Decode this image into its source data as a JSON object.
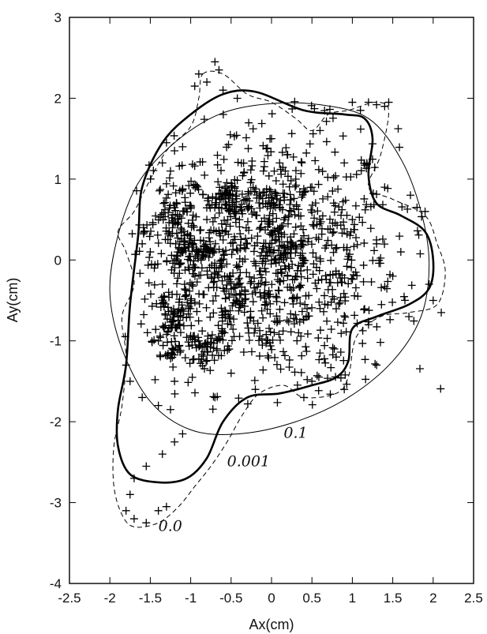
{
  "chart_data": {
    "type": "scatter",
    "title": "",
    "xlabel": "Ax(cm)",
    "ylabel": "Ay(cm)",
    "xlim": [
      -2.5,
      2.5
    ],
    "ylim": [
      -4,
      3
    ],
    "xticks": [
      "-2.5",
      "-2",
      "-1.5",
      "-1",
      "-0.5",
      "0",
      "0.5",
      "1",
      "1.5",
      "2",
      "2.5"
    ],
    "yticks": [
      "-4",
      "-3",
      "-2",
      "-1",
      "0",
      "1",
      "2",
      "3"
    ],
    "grid": false,
    "legend": "none",
    "marker": "+",
    "scatter_cluster": {
      "description_note": "",
      "points": [
        [
          -0.7,
          2.45
        ],
        [
          -0.65,
          2.35
        ],
        [
          -0.9,
          2.3
        ],
        [
          -0.8,
          2.2
        ],
        [
          -0.6,
          2.1
        ],
        [
          -0.95,
          2.15
        ],
        [
          1.0,
          1.95
        ],
        [
          1.2,
          1.95
        ],
        [
          1.3,
          1.92
        ],
        [
          1.4,
          1.9
        ],
        [
          1.45,
          1.95
        ],
        [
          1.1,
          1.85
        ],
        [
          -1.3,
          1.45
        ],
        [
          -1.2,
          1.35
        ],
        [
          -1.1,
          1.4
        ],
        [
          -1.35,
          1.2
        ],
        [
          -1.25,
          1.1
        ],
        [
          -1.5,
          0.1
        ],
        [
          -1.45,
          -0.1
        ],
        [
          -1.35,
          -0.3
        ],
        [
          -1.6,
          0.2
        ],
        [
          2.1,
          -0.65
        ],
        [
          2.0,
          -0.5
        ],
        [
          1.95,
          -0.3
        ],
        [
          1.9,
          0.6
        ],
        [
          1.8,
          0.65
        ],
        [
          -1.8,
          -1.3
        ],
        [
          -1.75,
          -1.5
        ],
        [
          -1.6,
          -1.7
        ],
        [
          -1.4,
          -1.8
        ],
        [
          -1.25,
          -1.85
        ],
        [
          -1.1,
          -2.15
        ],
        [
          -1.2,
          -2.25
        ],
        [
          -1.35,
          -2.4
        ],
        [
          -1.55,
          -2.55
        ],
        [
          -1.7,
          -2.7
        ],
        [
          -1.75,
          -2.9
        ],
        [
          -1.8,
          -3.1
        ],
        [
          -1.7,
          -3.2
        ],
        [
          -1.55,
          -3.25
        ],
        [
          -1.4,
          -3.1
        ],
        [
          -1.3,
          -3.05
        ],
        [
          0.2,
          1.3
        ],
        [
          0.1,
          1.2
        ],
        [
          -0.1,
          1.1
        ],
        [
          0.3,
          1.0
        ],
        [
          0.5,
          0.9
        ],
        [
          -0.3,
          0.2
        ],
        [
          0.0,
          0.0
        ],
        [
          0.2,
          -0.2
        ],
        [
          0.4,
          0.3
        ],
        [
          -0.2,
          -0.4
        ],
        [
          0.6,
          -0.6
        ],
        [
          1.0,
          0.5
        ],
        [
          1.3,
          0.2
        ],
        [
          1.5,
          -0.2
        ],
        [
          1.2,
          -0.8
        ],
        [
          0.8,
          -1.2
        ],
        [
          0.5,
          -1.5
        ],
        [
          -0.5,
          -1.4
        ],
        [
          -0.9,
          -1.0
        ],
        [
          -1.0,
          -0.5
        ],
        [
          -0.8,
          0.5
        ],
        [
          -0.5,
          0.9
        ],
        [
          0.0,
          1.5
        ],
        [
          0.6,
          1.6
        ],
        [
          0.9,
          1.2
        ],
        [
          1.4,
          0.9
        ],
        [
          1.6,
          0.1
        ],
        [
          1.7,
          -0.7
        ],
        [
          1.3,
          -1.3
        ],
        [
          0.9,
          -1.6
        ],
        [
          0.4,
          -1.7
        ],
        [
          -0.2,
          -1.6
        ],
        [
          -0.7,
          -1.7
        ],
        [
          -1.2,
          -1.5
        ],
        [
          -1.4,
          -1.0
        ]
      ]
    },
    "contours": [
      {
        "label": "0.1",
        "style": "thin-solid",
        "points": [
          [
            -0.05,
            1.93
          ],
          [
            0.6,
            1.92
          ],
          [
            1.2,
            1.75
          ],
          [
            1.6,
            1.25
          ],
          [
            1.85,
            0.6
          ],
          [
            1.95,
            -0.05
          ],
          [
            1.85,
            -0.7
          ],
          [
            1.5,
            -1.25
          ],
          [
            0.95,
            -1.7
          ],
          [
            0.3,
            -2.0
          ],
          [
            -0.4,
            -2.15
          ],
          [
            -1.0,
            -2.1
          ],
          [
            -1.5,
            -1.75
          ],
          [
            -1.85,
            -1.1
          ],
          [
            -2.0,
            -0.4
          ],
          [
            -1.9,
            0.3
          ],
          [
            -1.65,
            0.95
          ],
          [
            -1.2,
            1.45
          ],
          [
            -0.65,
            1.8
          ],
          [
            -0.05,
            1.93
          ]
        ]
      },
      {
        "label": "0.001",
        "style": "thick-solid",
        "points": [
          [
            -0.6,
            2.05
          ],
          [
            -0.2,
            2.08
          ],
          [
            0.4,
            1.85
          ],
          [
            0.9,
            1.8
          ],
          [
            1.15,
            1.75
          ],
          [
            1.25,
            1.5
          ],
          [
            1.2,
            1.05
          ],
          [
            1.3,
            0.7
          ],
          [
            1.6,
            0.55
          ],
          [
            1.9,
            0.35
          ],
          [
            2.0,
            0.0
          ],
          [
            1.95,
            -0.35
          ],
          [
            1.7,
            -0.55
          ],
          [
            1.3,
            -0.7
          ],
          [
            1.0,
            -0.85
          ],
          [
            0.95,
            -1.25
          ],
          [
            0.8,
            -1.45
          ],
          [
            0.5,
            -1.55
          ],
          [
            0.1,
            -1.65
          ],
          [
            -0.3,
            -1.7
          ],
          [
            -0.6,
            -2.0
          ],
          [
            -0.8,
            -2.45
          ],
          [
            -1.05,
            -2.7
          ],
          [
            -1.4,
            -2.75
          ],
          [
            -1.75,
            -2.65
          ],
          [
            -1.9,
            -2.3
          ],
          [
            -1.9,
            -1.85
          ],
          [
            -1.8,
            -1.3
          ],
          [
            -1.75,
            -0.55
          ],
          [
            -1.65,
            0.3
          ],
          [
            -1.6,
            0.9
          ],
          [
            -1.35,
            1.45
          ],
          [
            -1.0,
            1.8
          ],
          [
            -0.6,
            2.05
          ]
        ]
      },
      {
        "label": "0.0",
        "style": "dashed",
        "points": [
          [
            -0.85,
            2.3
          ],
          [
            -0.6,
            2.3
          ],
          [
            -0.3,
            2.05
          ],
          [
            0.0,
            1.95
          ],
          [
            0.3,
            1.75
          ],
          [
            0.5,
            1.6
          ],
          [
            0.7,
            1.8
          ],
          [
            0.95,
            1.85
          ],
          [
            1.1,
            1.9
          ],
          [
            1.3,
            1.95
          ],
          [
            1.45,
            1.85
          ],
          [
            1.35,
            1.3
          ],
          [
            1.2,
            0.9
          ],
          [
            1.5,
            0.75
          ],
          [
            1.9,
            0.55
          ],
          [
            2.05,
            0.2
          ],
          [
            2.15,
            -0.15
          ],
          [
            2.05,
            -0.55
          ],
          [
            1.7,
            -0.65
          ],
          [
            1.35,
            -0.7
          ],
          [
            1.05,
            -0.95
          ],
          [
            0.95,
            -1.45
          ],
          [
            0.8,
            -1.65
          ],
          [
            0.4,
            -1.7
          ],
          [
            0.15,
            -1.55
          ],
          [
            -0.15,
            -1.65
          ],
          [
            -0.35,
            -1.9
          ],
          [
            -0.55,
            -2.25
          ],
          [
            -0.75,
            -2.55
          ],
          [
            -0.95,
            -2.8
          ],
          [
            -1.15,
            -3.05
          ],
          [
            -1.4,
            -3.25
          ],
          [
            -1.7,
            -3.3
          ],
          [
            -1.85,
            -3.15
          ],
          [
            -1.95,
            -2.8
          ],
          [
            -1.95,
            -2.3
          ],
          [
            -1.85,
            -1.8
          ],
          [
            -1.8,
            -1.2
          ],
          [
            -1.85,
            -0.7
          ],
          [
            -1.7,
            -0.3
          ],
          [
            -1.8,
            0.1
          ],
          [
            -1.9,
            0.35
          ],
          [
            -1.7,
            0.6
          ],
          [
            -1.55,
            0.9
          ],
          [
            -1.3,
            1.35
          ],
          [
            -1.0,
            1.65
          ],
          [
            -0.9,
            2.0
          ],
          [
            -0.85,
            2.3
          ]
        ]
      }
    ],
    "annotations": [
      {
        "text": "0.1",
        "x": 0.15,
        "y": -2.2
      },
      {
        "text": "0.001",
        "x": -0.55,
        "y": -2.55
      },
      {
        "text": "0.0",
        "x": -1.4,
        "y": -3.35
      }
    ]
  }
}
